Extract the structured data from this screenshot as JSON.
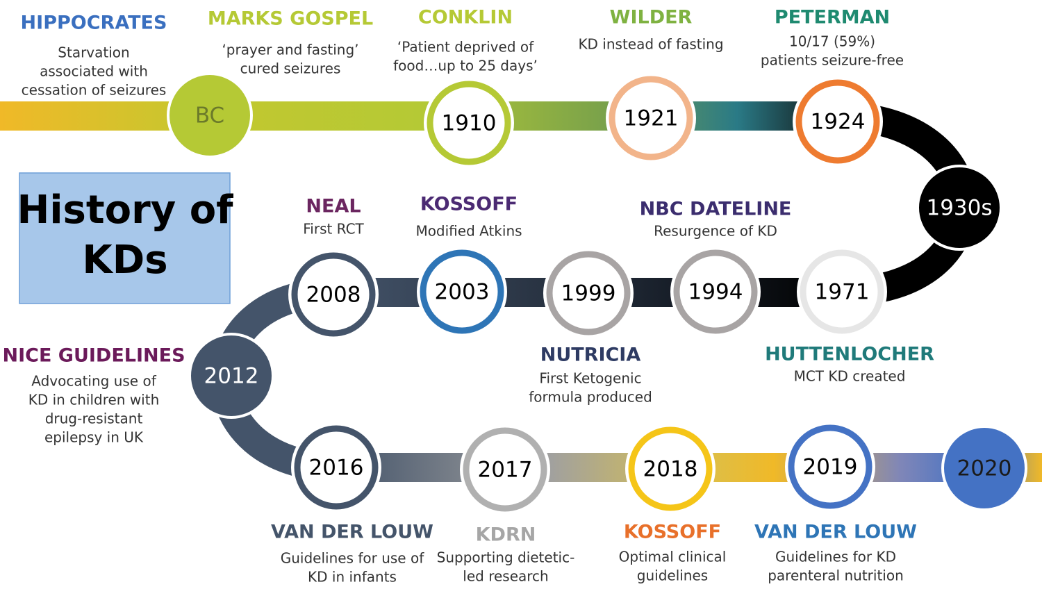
{
  "title_lines": [
    "History of",
    "KDs"
  ],
  "nodes": [
    {
      "label": "BC",
      "color": "#b5c935",
      "filled": true,
      "label_color": "#6b7a2a",
      "events": [
        {
          "heading": "HIPPOCRATES",
          "color": "#3a6fbf",
          "lines": [
            "Starvation",
            "associated with",
            "cessation of seizures"
          ]
        },
        {
          "heading": "MARKS GOSPEL",
          "color": "#b5c935",
          "lines": [
            "‘prayer and fasting’",
            "cured seizures"
          ]
        }
      ]
    },
    {
      "label": "1910",
      "color": "#b5c935",
      "filled": false,
      "events": [
        {
          "heading": "CONKLIN",
          "color": "#b5c935",
          "lines": [
            "‘Patient deprived of",
            "food…up to 25 days’"
          ]
        }
      ]
    },
    {
      "label": "1921",
      "color": "#f2b48a",
      "filled": false,
      "events": [
        {
          "heading": "WILDER",
          "color": "#7fb241",
          "lines": [
            "KD instead of fasting"
          ]
        }
      ]
    },
    {
      "label": "1924",
      "color": "#ee7b30",
      "filled": false,
      "events": [
        {
          "heading": "PETERMAN",
          "color": "#1f8a70",
          "lines": [
            "10/17 (59%)",
            "patients seizure-free"
          ]
        }
      ]
    },
    {
      "label": "1930s",
      "color": "#000000",
      "filled": true,
      "label_color": "#ffffff",
      "events": []
    },
    {
      "label": "1971",
      "color": "#e6e6e6",
      "filled": false,
      "events": [
        {
          "heading": "HUTTENLOCHER",
          "color": "#1f7a7a",
          "lines": [
            "MCT KD created"
          ]
        }
      ]
    },
    {
      "label": "1994",
      "color": "#a8a4a4",
      "filled": false,
      "events": [
        {
          "heading": "NBC DATELINE",
          "color": "#3b2d6e",
          "lines": [
            "Resurgence of KD"
          ]
        }
      ]
    },
    {
      "label": "1999",
      "color": "#a8a4a4",
      "filled": false,
      "events": [
        {
          "heading": "NUTRICIA",
          "color": "#2e3b63",
          "lines": [
            "First Ketogenic",
            "formula produced"
          ]
        }
      ]
    },
    {
      "label": "2003",
      "color": "#2e75b6",
      "filled": false,
      "events": [
        {
          "heading": "KOSSOFF",
          "color": "#4b2a73",
          "lines": [
            "Modified Atkins"
          ]
        }
      ]
    },
    {
      "label": "2008",
      "color": "#44546a",
      "filled": false,
      "events": [
        {
          "heading": "NEAL",
          "color": "#6b2660",
          "lines": [
            "First RCT"
          ]
        }
      ]
    },
    {
      "label": "2012",
      "color": "#44546a",
      "filled": true,
      "label_color": "#ffffff",
      "events": [
        {
          "heading": "NICE GUIDELINES",
          "color": "#6b1a5a",
          "lines": [
            "Advocating use of",
            "KD in children with",
            "drug-resistant",
            "epilepsy in UK"
          ]
        }
      ]
    },
    {
      "label": "2016",
      "color": "#44546a",
      "filled": false,
      "events": [
        {
          "heading": "VAN DER LOUW",
          "color": "#44546a",
          "lines": [
            "Guidelines for use of",
            "KD in infants"
          ]
        }
      ]
    },
    {
      "label": "2017",
      "color": "#b0b0b0",
      "filled": false,
      "events": [
        {
          "heading": "KDRN",
          "color": "#a6a6a6",
          "lines": [
            "Supporting dietetic-",
            "led research"
          ]
        }
      ]
    },
    {
      "label": "2018",
      "color": "#f5c518",
      "filled": false,
      "events": [
        {
          "heading": "KOSSOFF",
          "color": "#e8702a",
          "lines": [
            "Optimal clinical",
            "guidelines"
          ]
        }
      ]
    },
    {
      "label": "2019",
      "color": "#4472c4",
      "filled": false,
      "events": [
        {
          "heading": "VAN DER LOUW",
          "color": "#2e75b6",
          "lines": [
            "Guidelines for KD",
            "parenteral nutrition"
          ]
        }
      ]
    },
    {
      "label": "2020",
      "color": "#4472c4",
      "filled": true,
      "label_color": "#1a1a1a",
      "events": []
    }
  ]
}
